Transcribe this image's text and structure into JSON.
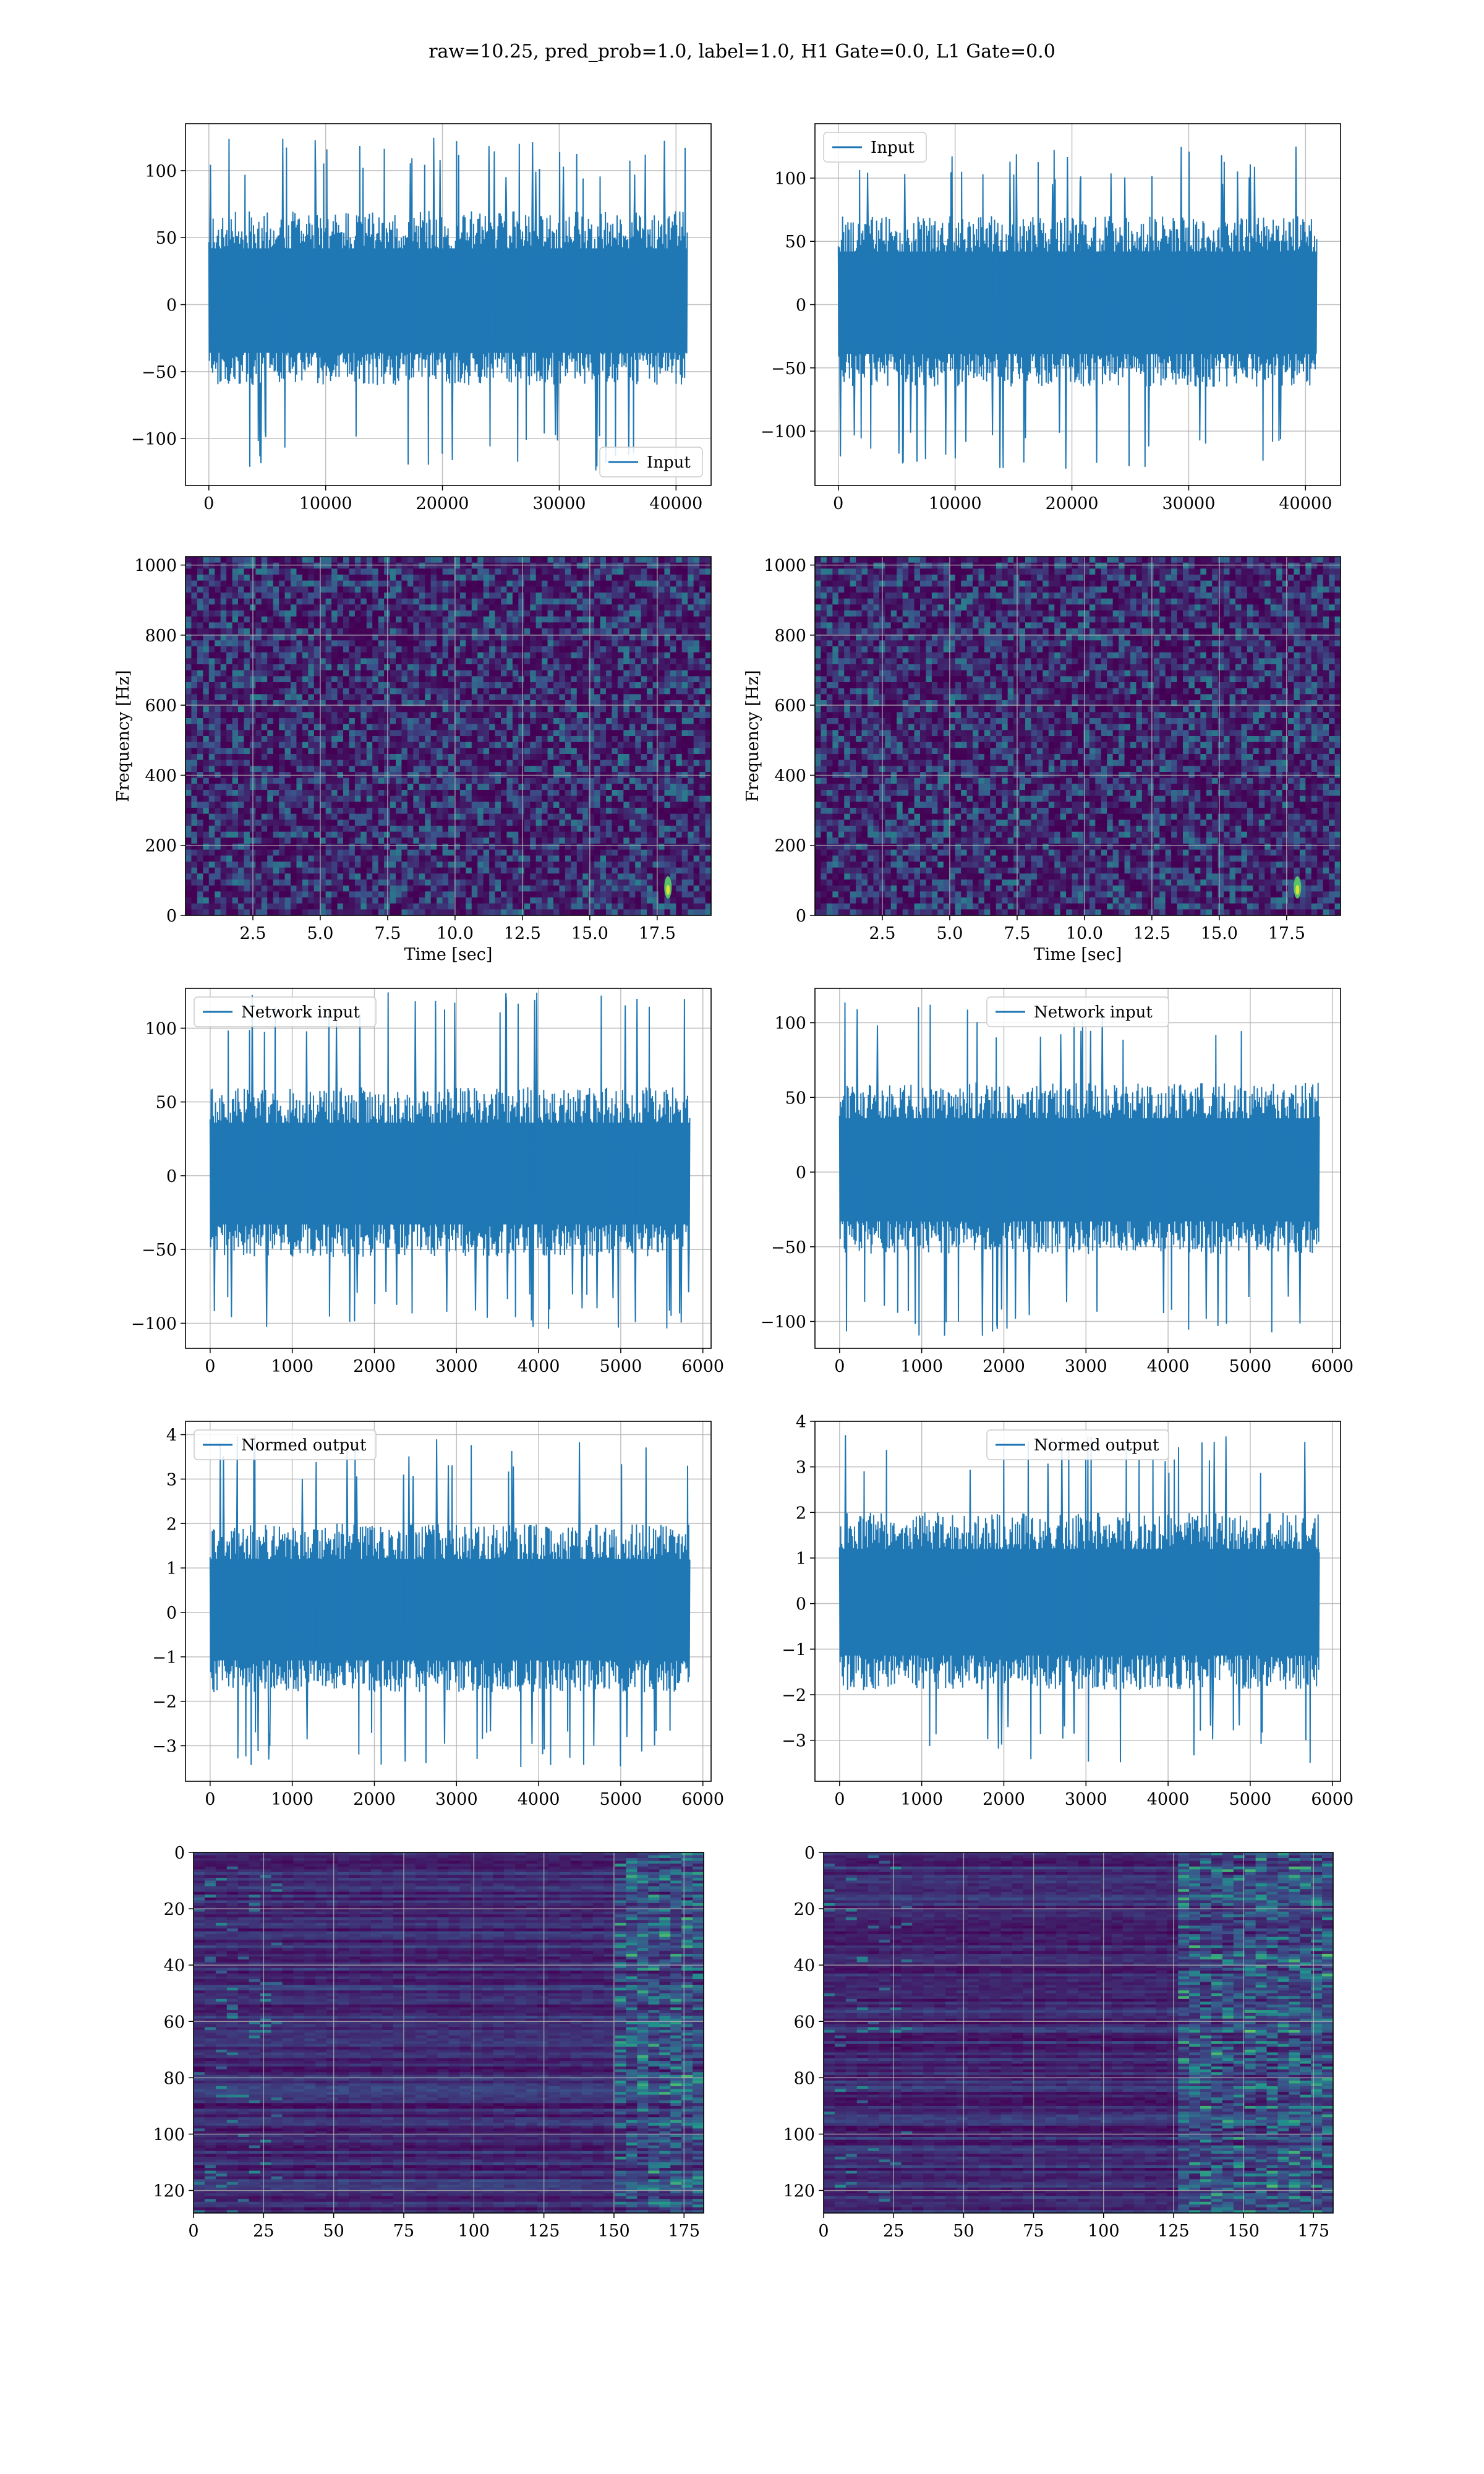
{
  "title": "raw=10.25, pred_prob=1.0, label=1.0, H1 Gate=0.0, L1 Gate=0.0",
  "colors": {
    "line": "#1f77b4",
    "grid": "#b0b0b0",
    "viridis_low": "#440154",
    "viridis_high": "#fde725"
  },
  "chart_data": [
    {
      "id": "input-h1",
      "type": "line",
      "xlim": [
        -2000,
        43000
      ],
      "ylim": [
        -135,
        135
      ],
      "xticks": [
        0,
        10000,
        20000,
        30000,
        40000
      ],
      "xtick_labels": [
        "0",
        "10000",
        "20000",
        "30000",
        "40000"
      ],
      "yticks": [
        -100,
        -50,
        0,
        50,
        100
      ],
      "ytick_labels": [
        "−100",
        "−50",
        "0",
        "50",
        "100"
      ],
      "grid": true,
      "legend": {
        "position": "lower right",
        "entries": [
          "Input"
        ]
      },
      "series": [
        {
          "name": "Input",
          "n": 40960,
          "band": [
            -60,
            70
          ],
          "extremes": [
            -125,
            125
          ]
        }
      ]
    },
    {
      "id": "input-l1",
      "type": "line",
      "xlim": [
        -2000,
        43000
      ],
      "ylim": [
        -143,
        143
      ],
      "xticks": [
        0,
        10000,
        20000,
        30000,
        40000
      ],
      "xtick_labels": [
        "0",
        "10000",
        "20000",
        "30000",
        "40000"
      ],
      "yticks": [
        -100,
        -50,
        0,
        50,
        100
      ],
      "ytick_labels": [
        "−100",
        "−50",
        "0",
        "50",
        "100"
      ],
      "grid": true,
      "legend": {
        "position": "upper left",
        "entries": [
          "Input"
        ]
      },
      "series": [
        {
          "name": "Input",
          "n": 40960,
          "band": [
            -65,
            70
          ],
          "extremes": [
            -130,
            125
          ]
        }
      ]
    },
    {
      "id": "spec-h1",
      "type": "heatmap",
      "xlim": [
        0,
        19.5
      ],
      "ylim": [
        0,
        1024
      ],
      "xticks": [
        2.5,
        5,
        7.5,
        10,
        12.5,
        15,
        17.5
      ],
      "xtick_labels": [
        "2.5",
        "5.0",
        "7.5",
        "10.0",
        "12.5",
        "15.0",
        "17.5"
      ],
      "yticks": [
        0,
        200,
        400,
        600,
        800,
        1000
      ],
      "ytick_labels": [
        "0",
        "200",
        "400",
        "600",
        "800",
        "1000"
      ],
      "xlabel": "Time [sec]",
      "ylabel": "Frequency [Hz]",
      "grid": true,
      "colormap": "viridis",
      "hotspot": {
        "time": 17.9,
        "freq": 80
      }
    },
    {
      "id": "spec-l1",
      "type": "heatmap",
      "xlim": [
        0,
        19.5
      ],
      "ylim": [
        0,
        1024
      ],
      "xticks": [
        2.5,
        5,
        7.5,
        10,
        12.5,
        15,
        17.5
      ],
      "xtick_labels": [
        "2.5",
        "5.0",
        "7.5",
        "10.0",
        "12.5",
        "15.0",
        "17.5"
      ],
      "yticks": [
        0,
        200,
        400,
        600,
        800,
        1000
      ],
      "ytick_labels": [
        "0",
        "200",
        "400",
        "600",
        "800",
        "1000"
      ],
      "xlabel": "Time [sec]",
      "ylabel": "Frequency [Hz]",
      "grid": true,
      "colormap": "viridis",
      "hotspot": {
        "time": 17.9,
        "freq": 80
      }
    },
    {
      "id": "net-h1",
      "type": "line",
      "xlim": [
        -300,
        6100
      ],
      "ylim": [
        -117,
        127
      ],
      "xticks": [
        0,
        1000,
        2000,
        3000,
        4000,
        5000,
        6000
      ],
      "xtick_labels": [
        "0",
        "1000",
        "2000",
        "3000",
        "4000",
        "5000",
        "6000"
      ],
      "yticks": [
        -100,
        -50,
        0,
        50,
        100
      ],
      "ytick_labels": [
        "−100",
        "−50",
        "0",
        "50",
        "100"
      ],
      "grid": true,
      "legend": {
        "position": "upper left",
        "entries": [
          "Network input"
        ]
      },
      "series": [
        {
          "name": "Network input",
          "n": 5840,
          "band": [
            -55,
            60
          ],
          "extremes": [
            -105,
            125
          ]
        }
      ]
    },
    {
      "id": "net-l1",
      "type": "line",
      "xlim": [
        -300,
        6100
      ],
      "ylim": [
        -118,
        123
      ],
      "xticks": [
        0,
        1000,
        2000,
        3000,
        4000,
        5000,
        6000
      ],
      "xtick_labels": [
        "0",
        "1000",
        "2000",
        "3000",
        "4000",
        "5000",
        "6000"
      ],
      "yticks": [
        -100,
        -50,
        0,
        50,
        100
      ],
      "ytick_labels": [
        "−100",
        "−50",
        "0",
        "50",
        "100"
      ],
      "grid": true,
      "legend": {
        "position": "upper center",
        "entries": [
          "Network input"
        ]
      },
      "series": [
        {
          "name": "Network input",
          "n": 5840,
          "band": [
            -55,
            60
          ],
          "extremes": [
            -110,
            115
          ]
        }
      ]
    },
    {
      "id": "norm-h1",
      "type": "line",
      "xlim": [
        -300,
        6100
      ],
      "ylim": [
        -3.8,
        4.3
      ],
      "xticks": [
        0,
        1000,
        2000,
        3000,
        4000,
        5000,
        6000
      ],
      "xtick_labels": [
        "0",
        "1000",
        "2000",
        "3000",
        "4000",
        "5000",
        "6000"
      ],
      "yticks": [
        -3,
        -2,
        -1,
        0,
        1,
        2,
        3,
        4
      ],
      "ytick_labels": [
        "−3",
        "−2",
        "−1",
        "0",
        "1",
        "2",
        "3",
        "4"
      ],
      "grid": true,
      "legend": {
        "position": "upper left",
        "entries": [
          "Normed output"
        ]
      },
      "series": [
        {
          "name": "Normed output",
          "n": 5840,
          "band": [
            -1.8,
            2.0
          ],
          "extremes": [
            -3.5,
            4.0
          ]
        }
      ]
    },
    {
      "id": "norm-l1",
      "type": "line",
      "xlim": [
        -300,
        6100
      ],
      "ylim": [
        -3.9,
        4.0
      ],
      "xticks": [
        0,
        1000,
        2000,
        3000,
        4000,
        5000,
        6000
      ],
      "xtick_labels": [
        "0",
        "1000",
        "2000",
        "3000",
        "4000",
        "5000",
        "6000"
      ],
      "yticks": [
        -3,
        -2,
        -1,
        0,
        1,
        2,
        3,
        4
      ],
      "ytick_labels": [
        "−3",
        "−2",
        "−1",
        "0",
        "1",
        "2",
        "3",
        "4"
      ],
      "grid": true,
      "legend": {
        "position": "upper center",
        "entries": [
          "Normed output"
        ]
      },
      "series": [
        {
          "name": "Normed output",
          "n": 5840,
          "band": [
            -1.9,
            2.0
          ],
          "extremes": [
            -3.5,
            3.7
          ]
        }
      ]
    },
    {
      "id": "feat-h1",
      "type": "heatmap",
      "xlim": [
        0,
        182
      ],
      "ylim": [
        128,
        0
      ],
      "xticks": [
        0,
        25,
        50,
        75,
        100,
        125,
        150,
        175
      ],
      "xtick_labels": [
        "0",
        "25",
        "50",
        "75",
        "100",
        "125",
        "150",
        "175"
      ],
      "yticks": [
        0,
        20,
        40,
        60,
        80,
        100,
        120
      ],
      "ytick_labels": [
        "0",
        "20",
        "40",
        "60",
        "80",
        "100",
        "120"
      ],
      "grid": true,
      "colormap": "viridis",
      "active_region_from": 150
    },
    {
      "id": "feat-l1",
      "type": "heatmap",
      "xlim": [
        0,
        182
      ],
      "ylim": [
        128,
        0
      ],
      "xticks": [
        0,
        25,
        50,
        75,
        100,
        125,
        150,
        175
      ],
      "xtick_labels": [
        "0",
        "25",
        "50",
        "75",
        "100",
        "125",
        "150",
        "175"
      ],
      "yticks": [
        0,
        20,
        40,
        60,
        80,
        100,
        120
      ],
      "ytick_labels": [
        "0",
        "20",
        "40",
        "60",
        "80",
        "100",
        "120"
      ],
      "grid": true,
      "colormap": "viridis",
      "active_region_from": 125
    }
  ]
}
